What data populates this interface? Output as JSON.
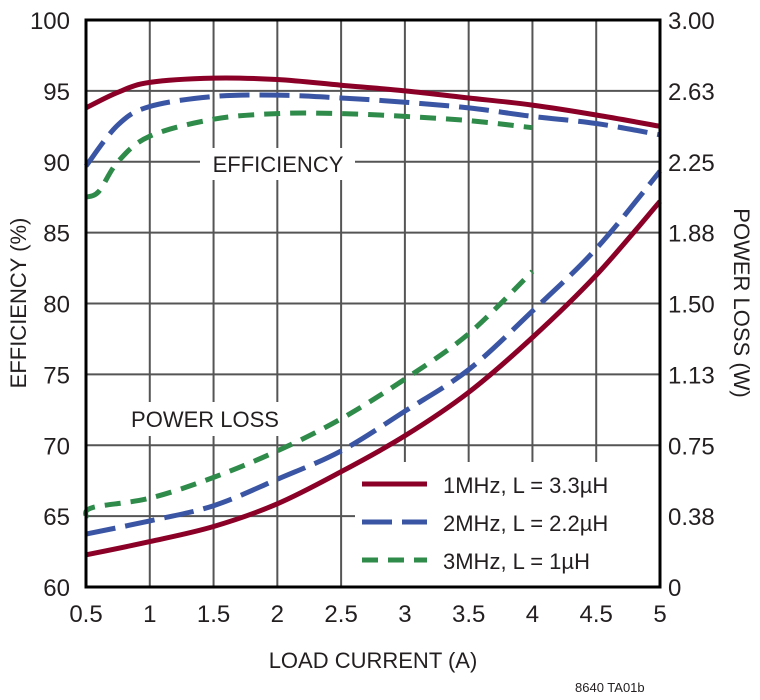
{
  "chart_data": {
    "type": "line",
    "title": "",
    "xlabel": "LOAD CURRENT (A)",
    "ylabel": "EFFICIENCY (%)",
    "y2label": "POWER LOSS (W)",
    "xlim": [
      0.5,
      5
    ],
    "ylim": [
      60,
      100
    ],
    "y2lim": [
      0,
      3.0
    ],
    "grid": true,
    "legend_position": "lower right inside plot",
    "x_ticks": [
      "0.5",
      "1",
      "1.5",
      "2",
      "2.5",
      "3",
      "3.5",
      "4",
      "4.5",
      "5"
    ],
    "y_ticks": [
      "60",
      "65",
      "70",
      "75",
      "80",
      "85",
      "90",
      "95",
      "100"
    ],
    "y2_ticks": [
      "0",
      "0.38",
      "0.75",
      "1.13",
      "1.50",
      "1.88",
      "2.25",
      "2.63",
      "3.00"
    ],
    "annotations": [
      "EFFICIENCY",
      "POWER LOSS"
    ],
    "figure_code": "8640 TA01b",
    "x": [
      0.5,
      1,
      1.5,
      2,
      2.5,
      3,
      3.5,
      4,
      4.5,
      5
    ],
    "series": [
      {
        "name": "1MHz, L = 3.3µH",
        "group": "efficiency",
        "axis": "left",
        "color": "#8b0027",
        "style": "solid",
        "x": [
          0.5,
          0.75,
          1,
          1.5,
          2,
          2.5,
          3,
          3.5,
          4,
          4.5,
          5
        ],
        "values": [
          93.8,
          94.9,
          95.6,
          95.9,
          95.8,
          95.4,
          95.0,
          94.5,
          94.0,
          93.3,
          92.5
        ]
      },
      {
        "name": "2MHz, L = 2.2µH",
        "group": "efficiency",
        "axis": "left",
        "color": "#3a55a4",
        "style": "long-dash",
        "x": [
          0.5,
          0.75,
          1,
          1.5,
          2,
          2.5,
          3,
          3.5,
          4,
          4.5,
          5
        ],
        "values": [
          89.7,
          92.6,
          93.9,
          94.6,
          94.7,
          94.5,
          94.2,
          93.8,
          93.2,
          92.7,
          91.9
        ]
      },
      {
        "name": "3MHz, L = 1µH",
        "group": "efficiency",
        "axis": "left",
        "color": "#2e8b4a",
        "style": "short-dash",
        "x": [
          0.5,
          0.6,
          0.75,
          1,
          1.5,
          2,
          2.5,
          3,
          3.5,
          4
        ],
        "values": [
          87.5,
          87.9,
          90.0,
          91.8,
          93.0,
          93.4,
          93.4,
          93.2,
          92.9,
          92.4
        ]
      },
      {
        "name": "1MHz, L = 3.3µH",
        "group": "power_loss",
        "axis": "right",
        "color": "#8b0027",
        "style": "solid",
        "x": [
          0.5,
          1,
          1.5,
          2,
          2.5,
          3,
          3.5,
          4,
          4.5,
          5
        ],
        "values": [
          0.17,
          0.24,
          0.32,
          0.44,
          0.61,
          0.8,
          1.03,
          1.32,
          1.65,
          2.04
        ]
      },
      {
        "name": "2MHz, L = 2.2µH",
        "group": "power_loss",
        "axis": "right",
        "color": "#3a55a4",
        "style": "long-dash",
        "x": [
          0.5,
          1,
          1.5,
          2,
          2.5,
          3,
          3.5,
          4,
          4.5,
          5
        ],
        "values": [
          0.28,
          0.35,
          0.43,
          0.57,
          0.72,
          0.93,
          1.15,
          1.46,
          1.79,
          2.2
        ]
      },
      {
        "name": "3MHz, L = 1µH",
        "group": "power_loss",
        "axis": "right",
        "color": "#2e8b4a",
        "style": "short-dash",
        "x": [
          0.5,
          0.55,
          1,
          1.5,
          2,
          2.5,
          3,
          3.5,
          4
        ],
        "values": [
          0.37,
          0.42,
          0.47,
          0.58,
          0.72,
          0.89,
          1.1,
          1.34,
          1.67
        ]
      }
    ],
    "legend": [
      {
        "label": "1MHz, L = 3.3µH",
        "color": "#8b0027",
        "style": "solid"
      },
      {
        "label": "2MHz, L = 2.2µH",
        "color": "#3a55a4",
        "style": "long-dash"
      },
      {
        "label": "3MHz, L = 1µH",
        "color": "#2e8b4a",
        "style": "short-dash"
      }
    ]
  }
}
